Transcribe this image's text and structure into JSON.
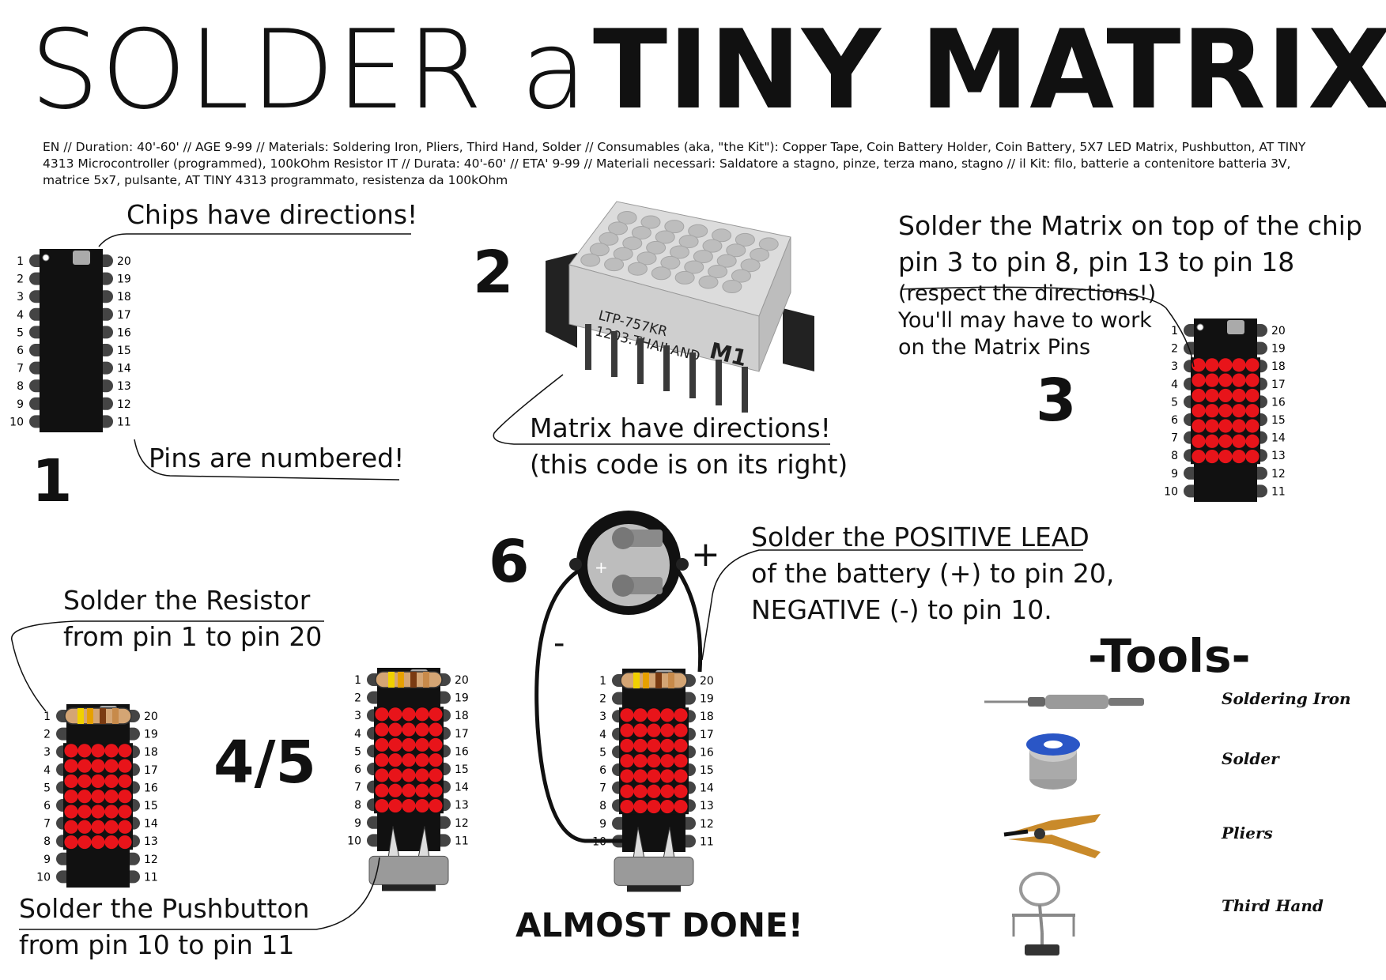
{
  "title": {
    "light": "SOLDER a",
    "bold": "TINY MATRIX"
  },
  "intro": "EN // Duration:  40'-60' // AGE 9-99 // Materials: Soldering Iron, Pliers, Third Hand, Solder // Consumables (aka, \"the Kit\"): Copper Tape, Coin Battery Holder, Coin Battery,  5X7 LED Matrix,  Pushbutton, AT TINY 4313 Microcontroller (programmed), 100kOhm Resistor IT // Durata: 40'-60' // ETA' 9-99  // Materiali necessari: Saldatore a stagno, pinze, terza mano, stagno // il Kit: filo, batterie a contenitore batteria 3V, matrice 5x7, pulsante, AT TINY 4313 programmato, resistenza da 100kOhm",
  "step1": {
    "number": "1",
    "top_label": "Chips have directions!",
    "bottom_label": "Pins are numbered!"
  },
  "step2": {
    "number": "2",
    "label_line1": "Matrix have directions!",
    "label_line2": "(this code is on its right)",
    "print_line1": "LTP-757KR",
    "print_line2": "1203.THAILAND",
    "print_mark": "M1"
  },
  "step3": {
    "number": "3",
    "line1": "Solder the Matrix on top of the chip",
    "line2": "pin 3 to pin 8, pin 13 to pin 18",
    "line3": "(respect the directions!)",
    "line4": "You'll may have to work",
    "line5": "on the Matrix Pins"
  },
  "step45": {
    "number": "4/5",
    "resistor_line1": "Solder the Resistor",
    "resistor_line2": "from pin 1 to pin 20",
    "button_line1": "Solder the Pushbutton",
    "button_line2": "from pin 10 to pin 11"
  },
  "step6": {
    "number": "6",
    "line1": "Solder the POSITIVE LEAD",
    "line2": "of the battery (+) to pin 20,",
    "line3": "NEGATIVE (-) to pin 10.",
    "plus": "+",
    "minus": "-",
    "done": "ALMOST DONE!"
  },
  "pins_left": [
    "1",
    "2",
    "3",
    "4",
    "5",
    "6",
    "7",
    "8",
    "9",
    "10"
  ],
  "pins_right": [
    "20",
    "19",
    "18",
    "17",
    "16",
    "15",
    "14",
    "13",
    "12",
    "11"
  ],
  "tools": {
    "title": "-Tools-",
    "items": [
      "Soldering Iron",
      "Solder",
      "Pliers",
      "Third Hand"
    ]
  },
  "colors": {
    "led": "#e8141a",
    "chip": "#111111",
    "pin": "#444444",
    "ink": "#111111"
  }
}
